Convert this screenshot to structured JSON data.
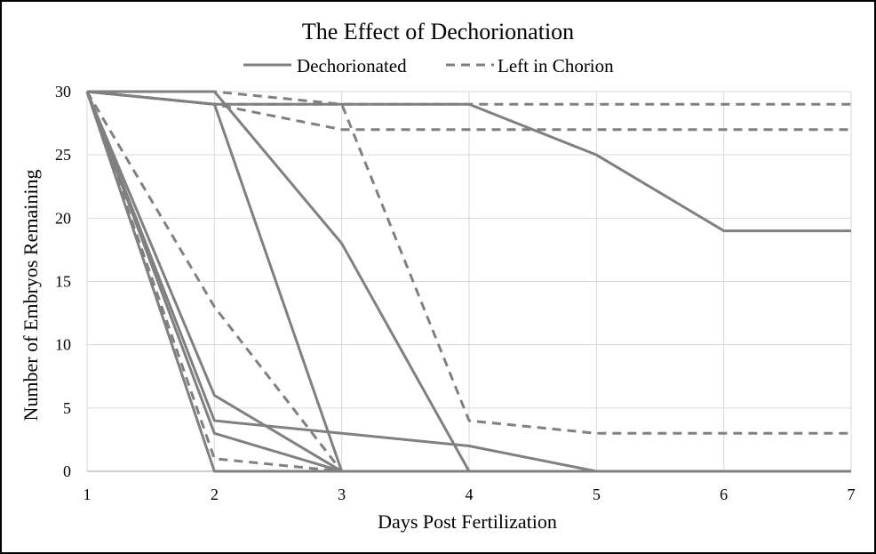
{
  "chart_data": {
    "type": "line",
    "title": "The Effect of Dechorionation",
    "xlabel": "Days Post Fertilization",
    "ylabel": "Number of Embryos Remaining",
    "x": [
      1,
      2,
      3,
      4,
      5,
      6,
      7
    ],
    "xlim": [
      1,
      7
    ],
    "ylim": [
      0,
      30
    ],
    "yticks": [
      0,
      5,
      10,
      15,
      20,
      25,
      30
    ],
    "xticks": [
      1,
      2,
      3,
      4,
      5,
      6,
      7
    ],
    "grid": true,
    "legend_position": "top",
    "line_color": "#808080",
    "legend": [
      {
        "label": "Dechorionated",
        "style": "solid"
      },
      {
        "label": "Left in Chorion",
        "style": "dashed"
      }
    ],
    "series": [
      {
        "group": "Dechorionated",
        "style": "solid",
        "values": [
          30,
          29,
          29,
          29,
          25,
          19,
          19
        ]
      },
      {
        "group": "Dechorionated",
        "style": "solid",
        "values": [
          30,
          30,
          18,
          0,
          0,
          0,
          0
        ]
      },
      {
        "group": "Dechorionated",
        "style": "solid",
        "values": [
          30,
          29,
          0,
          0,
          0,
          0,
          0
        ]
      },
      {
        "group": "Dechorionated",
        "style": "solid",
        "values": [
          30,
          4,
          3,
          2,
          0,
          0,
          0
        ]
      },
      {
        "group": "Dechorionated",
        "style": "solid",
        "values": [
          30,
          6,
          0,
          0,
          0,
          0,
          0
        ]
      },
      {
        "group": "Dechorionated",
        "style": "solid",
        "values": [
          30,
          3,
          0,
          0,
          0,
          0,
          0
        ]
      },
      {
        "group": "Dechorionated",
        "style": "solid",
        "values": [
          30,
          0,
          0,
          0,
          0,
          0,
          0
        ]
      },
      {
        "group": "Left in Chorion",
        "style": "dashed",
        "values": [
          30,
          30,
          29,
          29,
          29,
          29,
          29
        ]
      },
      {
        "group": "Left in Chorion",
        "style": "dashed",
        "values": [
          30,
          29,
          27,
          27,
          27,
          27,
          27
        ]
      },
      {
        "group": "Left in Chorion",
        "style": "dashed",
        "values": [
          30,
          29,
          29,
          4,
          3,
          3,
          3
        ]
      },
      {
        "group": "Left in Chorion",
        "style": "dashed",
        "values": [
          30,
          13,
          0,
          0,
          0,
          0,
          0
        ]
      },
      {
        "group": "Left in Chorion",
        "style": "dashed",
        "values": [
          30,
          1,
          0,
          0,
          0,
          0,
          0
        ]
      }
    ]
  }
}
